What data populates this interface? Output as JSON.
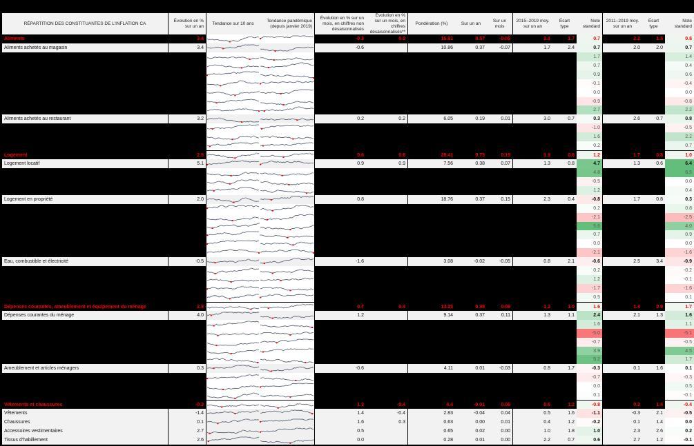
{
  "headers": {
    "label": "RÉPARTITION DES CONSTITUANTES DE L'INFLATION CA",
    "evol_an": "Évolution en % sur un an",
    "trend10": "Tendance sur 10 ans",
    "trend_pand": "Tendance pandémique (depuis janvier 2019)",
    "evol_mois_nd": "Évolution en % sur un mois, en chiffres non désaisonnalisés",
    "evol_mois_d": "Évolution en % sur un mois, en chiffres désaisonnalisés**",
    "ponderation": "Pondération (%)",
    "sur_an": "Sur un an",
    "sur_mois": "Sur un mois",
    "moy_2015": "2015–2019 moy. sur un an",
    "ecart_2015": "Écart type",
    "note_2015": "Note standard",
    "moy_2011": "2011–2019 moy. sur un an",
    "ecart_2011": "Écart type",
    "note_2011": "Note standard"
  },
  "colors": {
    "category_red": "#ff0000",
    "row_gray": "#f2f2f2",
    "pos_green": "#63be7b",
    "neg_red": "#f8696b"
  },
  "rows": [
    {
      "type": "cat",
      "label": "Aliments",
      "evol_an": "3.4",
      "mois_nd": "-0.3",
      "mois_d": "0.0",
      "pond": "16.91",
      "sur_an": "0.57",
      "sur_mois": "-0.05",
      "moy15": "2.1",
      "ec15": "1.7",
      "note15": "0.7",
      "moy11": "2.2",
      "ec11": "1.5",
      "note11": "0.8"
    },
    {
      "type": "sub",
      "label": "Aliments achetés au magasin",
      "evol_an": "3.4",
      "mois_nd": "-0.6",
      "mois_d": "",
      "pond": "10.86",
      "sur_an": "0.37",
      "sur_mois": "-0.07",
      "moy15": "1.7",
      "ec15": "2.4",
      "note15": "0.7",
      "moy11": "2.0",
      "ec11": "2.0",
      "note11": "0.7"
    },
    {
      "type": "hid",
      "note15": "1.7",
      "note11": "1.4"
    },
    {
      "type": "hid",
      "note15": "0.7",
      "note11": "0.4"
    },
    {
      "type": "hid",
      "note15": "0.9",
      "note11": "0.6"
    },
    {
      "type": "hid",
      "note15": "-0.1",
      "note11": "-0.4"
    },
    {
      "type": "hid",
      "note15": "0.0",
      "note11": "0.0"
    },
    {
      "type": "hid",
      "note15": "-0.9",
      "note11": "-0.8"
    },
    {
      "type": "hid",
      "note15": "2.7",
      "note11": "2.2"
    },
    {
      "type": "sub",
      "label": "Aliments achetés au restaurant",
      "evol_an": "3.2",
      "mois_nd": "0.2",
      "mois_d": "0.2",
      "pond": "6.05",
      "sur_an": "0.19",
      "sur_mois": "0.01",
      "moy15": "3.0",
      "ec15": "0.7",
      "note15": "0.3",
      "moy11": "2.6",
      "ec11": "0.7",
      "note11": "0.8"
    },
    {
      "type": "hid",
      "note15": "-1.0",
      "note11": "-0.5"
    },
    {
      "type": "hid",
      "note15": "1.6",
      "note11": "2.2"
    },
    {
      "type": "hid",
      "note15": "0.2",
      "note11": "0.7"
    },
    {
      "type": "cat",
      "label": "Logement",
      "evol_an": "2.5",
      "mois_nd": "0.6",
      "mois_d": "0.6",
      "pond": "28.41",
      "sur_an": "0.73",
      "sur_mois": "0.19",
      "moy15": "1.8",
      "ec15": "0.6",
      "note15": "1.2",
      "moy11": "1.7",
      "ec11": "0.8",
      "note11": "1.0"
    },
    {
      "type": "sub",
      "label": "Logement locatif",
      "evol_an": "5.1",
      "mois_nd": "0.9",
      "mois_d": "0.9",
      "pond": "7.56",
      "sur_an": "0.38",
      "sur_mois": "0.07",
      "moy15": "1.3",
      "ec15": "0.8",
      "note15": "4.7",
      "moy11": "1.3",
      "ec11": "0.6",
      "note11": "6.4"
    },
    {
      "type": "hid",
      "note15": "4.8",
      "note11": "6.5"
    },
    {
      "type": "hid",
      "note15": "-0.5",
      "note11": "0.0"
    },
    {
      "type": "hid",
      "note15": "1.2",
      "note11": "0.4"
    },
    {
      "type": "sub",
      "label": "Logement en propriété",
      "evol_an": "2.0",
      "mois_nd": "0.8",
      "mois_d": "",
      "pond": "18.76",
      "sur_an": "0.37",
      "sur_mois": "0.15",
      "moy15": "2.3",
      "ec15": "0.4",
      "note15": "-0.8",
      "moy11": "1.7",
      "ec11": "0.8",
      "note11": "0.3"
    },
    {
      "type": "hid",
      "note15": "0.2",
      "note11": "0.8"
    },
    {
      "type": "hid",
      "note15": "-2.1",
      "note11": "-2.5"
    },
    {
      "type": "hid",
      "note15": "5.6",
      "note11": "4.0"
    },
    {
      "type": "hid",
      "note15": "0.7",
      "note11": "0.9"
    },
    {
      "type": "hid",
      "note15": "0.0",
      "note11": "0.0"
    },
    {
      "type": "hid",
      "note15": "-2.1",
      "note11": "-1.6"
    },
    {
      "type": "sub",
      "label": "Eau, combustible et électricité",
      "evol_an": "-0.5",
      "mois_nd": "-1.6",
      "mois_d": "",
      "pond": "3.08",
      "sur_an": "-0.02",
      "sur_mois": "-0.05",
      "moy15": "0.8",
      "ec15": "2.1",
      "note15": "-0.6",
      "moy11": "2.5",
      "ec11": "3.4",
      "note11": "-0.9"
    },
    {
      "type": "hid",
      "note15": "0.2",
      "note11": "-0.2"
    },
    {
      "type": "hid",
      "note15": "1.2",
      "note11": "-0.1"
    },
    {
      "type": "hid",
      "note15": "-1.7",
      "note11": "-1.6"
    },
    {
      "type": "hid",
      "note15": "0.5",
      "note11": "0.1"
    },
    {
      "type": "cat",
      "label": "Dépenses courantes, ameublement et équipement du ménage",
      "evol_an": "2.9",
      "mois_nd": "0.7",
      "mois_d": "0.4",
      "pond": "13.25",
      "sur_an": "0.38",
      "sur_mois": "0.09",
      "moy15": "1.2",
      "ec15": "1.0",
      "note15": "1.6",
      "moy11": "1.4",
      "ec11": "0.9",
      "note11": "1.7"
    },
    {
      "type": "sub",
      "label": "Dépenses courantes du ménage",
      "evol_an": "4.0",
      "mois_nd": "1.2",
      "mois_d": "",
      "pond": "9.14",
      "sur_an": "0.37",
      "sur_mois": "0.11",
      "moy15": "1.3",
      "ec15": "1.1",
      "note15": "2.4",
      "moy11": "2.1",
      "ec11": "1.3",
      "note11": "1.6"
    },
    {
      "type": "hid",
      "note15": "1.6",
      "note11": "1.1"
    },
    {
      "type": "hid",
      "note15": "-5.0",
      "note11": "-5.1"
    },
    {
      "type": "hid",
      "note15": "-0.7",
      "note11": "-0.5"
    },
    {
      "type": "hid",
      "note15": "3.9",
      "note11": "4.5"
    },
    {
      "type": "hid",
      "note15": "5.2",
      "note11": "1.7"
    },
    {
      "type": "sub",
      "label": "Ameublement et articles ménagers",
      "evol_an": "0.3",
      "mois_nd": "-0.6",
      "mois_d": "",
      "pond": "4.11",
      "sur_an": "0.01",
      "sur_mois": "-0.03",
      "moy15": "0.8",
      "ec15": "1.7",
      "note15": "-0.3",
      "moy11": "0.1",
      "ec11": "1.6",
      "note11": "0.1"
    },
    {
      "type": "hid",
      "note15": "-0.7",
      "note11": "-0.3"
    },
    {
      "type": "hid",
      "note15": "0.0",
      "note11": "0.5"
    },
    {
      "type": "hid",
      "note15": "0.1",
      "note11": "-0.1"
    },
    {
      "type": "cat",
      "label": "Vêtements et chaussures",
      "evol_an": "-0.3",
      "mois_nd": "1.3",
      "mois_d": "-0.4",
      "pond": "4.4",
      "sur_an": "-0.01",
      "sur_mois": "0.06",
      "moy15": "0.6",
      "ec15": "1.2",
      "note15": "-0.8",
      "moy11": "0.3",
      "ec11": "1.4",
      "note11": "-0.4"
    },
    {
      "type": "sub",
      "label": "Vêtements",
      "evol_an": "-1.4",
      "mois_nd": "1.4",
      "mois_d": "-0.4",
      "pond": "2.83",
      "sur_an": "-0.04",
      "sur_mois": "0.04",
      "moy15": "0.5",
      "ec15": "1.6",
      "note15": "-1.1",
      "moy11": "-0.3",
      "ec11": "2.1",
      "note11": "-0.5"
    },
    {
      "type": "sub",
      "label": "Chaussures",
      "evol_an": "0.1",
      "mois_nd": "1.6",
      "mois_d": "0.3",
      "pond": "0.63",
      "sur_an": "0.00",
      "sur_mois": "0.01",
      "moy15": "0.4",
      "ec15": "1.2",
      "note15": "-0.2",
      "moy11": "0.1",
      "ec11": "1.4",
      "note11": "0.0"
    },
    {
      "type": "sub",
      "label": "Accessoires vestimentaires",
      "evol_an": "2.7",
      "mois_nd": "0.5",
      "mois_d": "",
      "pond": "0.65",
      "sur_an": "0.02",
      "sur_mois": "0.00",
      "moy15": "1.0",
      "ec15": "1.8",
      "note15": "1.0",
      "moy11": "2.3",
      "ec11": "2.6",
      "note11": "0.2"
    },
    {
      "type": "sub",
      "label": "Tissus d'habillement",
      "evol_an": "2.6",
      "mois_nd": "0.0",
      "mois_d": "",
      "pond": "0.28",
      "sur_an": "0.01",
      "sur_mois": "0.00",
      "moy15": "2.2",
      "ec15": "0.7",
      "note15": "0.6",
      "moy11": "2.7",
      "ec11": "1.2",
      "note11": "-0.1"
    }
  ]
}
